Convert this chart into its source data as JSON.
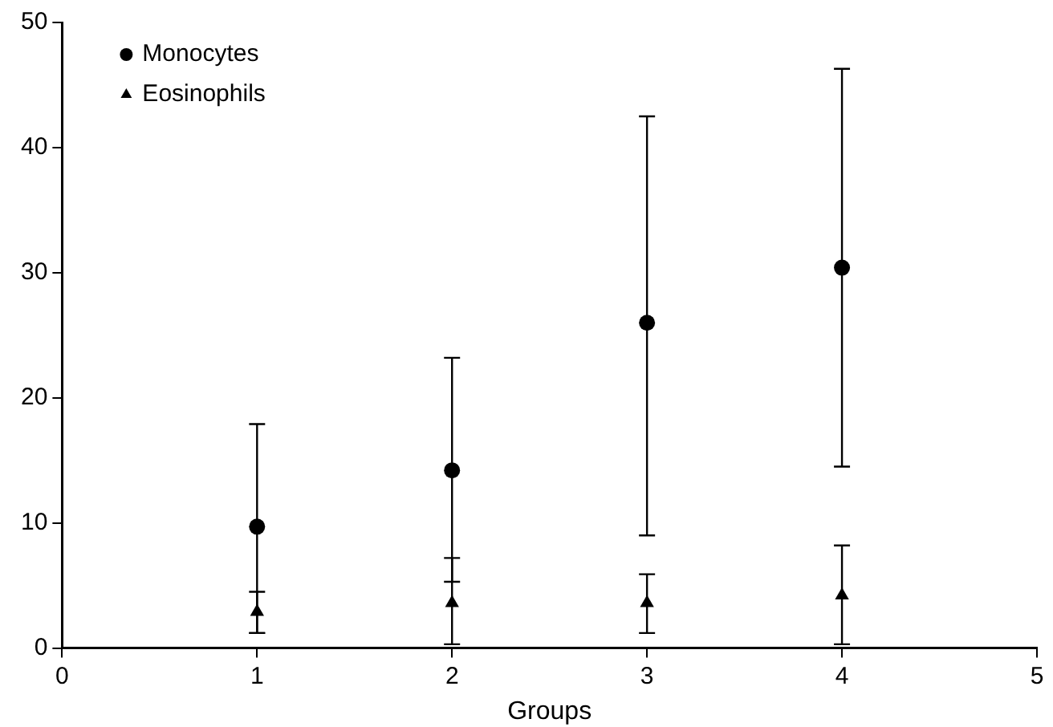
{
  "chart_data": {
    "type": "scatter",
    "xlabel": "Groups",
    "xlim": [
      0,
      5
    ],
    "xticks": [
      0,
      1,
      2,
      3,
      4,
      5
    ],
    "ylim": [
      0,
      50
    ],
    "yticks": [
      0,
      10,
      20,
      30,
      40,
      50
    ],
    "grid": false,
    "legend": "top left",
    "series": [
      {
        "name": "Monocytes",
        "color": "#000000",
        "marker": "circle",
        "x": [
          1,
          2,
          3,
          4
        ],
        "values": [
          9.7,
          14.2,
          26.0,
          30.4
        ],
        "errors": [
          [
            1.2,
            17.9
          ],
          [
            5.3,
            23.2
          ],
          [
            9.0,
            42.5
          ],
          [
            14.5,
            46.3
          ]
        ]
      },
      {
        "name": "Eosinophils",
        "color": "#000000",
        "marker": "triangle",
        "x": [
          1,
          2,
          3,
          4
        ],
        "values": [
          2.9,
          3.6,
          3.6,
          4.2
        ],
        "errors": [
          [
            1.2,
            4.5
          ],
          [
            0.3,
            7.2
          ],
          [
            1.2,
            5.9
          ],
          [
            0.3,
            8.2
          ]
        ]
      }
    ]
  }
}
